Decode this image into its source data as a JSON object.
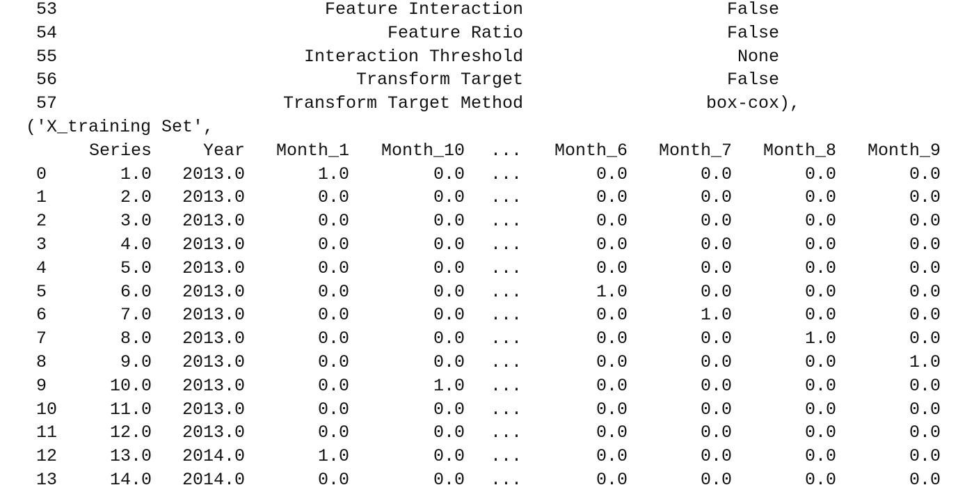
{
  "params_table": {
    "rows": [
      {
        "index": "53",
        "name": "Feature Interaction",
        "value": "False"
      },
      {
        "index": "54",
        "name": "Feature Ratio",
        "value": "False"
      },
      {
        "index": "55",
        "name": "Interaction Threshold",
        "value": "None"
      },
      {
        "index": "56",
        "name": "Transform Target",
        "value": "False"
      },
      {
        "index": "57",
        "name": "Transform Target Method",
        "value": "box-cox),"
      }
    ]
  },
  "tuple_label": "('X_training Set',",
  "data_table": {
    "columns": [
      "Series",
      "Year",
      "Month_1",
      "Month_10",
      "...",
      "Month_6",
      "Month_7",
      "Month_8",
      "Month_9"
    ],
    "rows": [
      {
        "index": "0",
        "cells": [
          "1.0",
          "2013.0",
          "1.0",
          "0.0",
          "...",
          "0.0",
          "0.0",
          "0.0",
          "0.0"
        ]
      },
      {
        "index": "1",
        "cells": [
          "2.0",
          "2013.0",
          "0.0",
          "0.0",
          "...",
          "0.0",
          "0.0",
          "0.0",
          "0.0"
        ]
      },
      {
        "index": "2",
        "cells": [
          "3.0",
          "2013.0",
          "0.0",
          "0.0",
          "...",
          "0.0",
          "0.0",
          "0.0",
          "0.0"
        ]
      },
      {
        "index": "3",
        "cells": [
          "4.0",
          "2013.0",
          "0.0",
          "0.0",
          "...",
          "0.0",
          "0.0",
          "0.0",
          "0.0"
        ]
      },
      {
        "index": "4",
        "cells": [
          "5.0",
          "2013.0",
          "0.0",
          "0.0",
          "...",
          "0.0",
          "0.0",
          "0.0",
          "0.0"
        ]
      },
      {
        "index": "5",
        "cells": [
          "6.0",
          "2013.0",
          "0.0",
          "0.0",
          "...",
          "1.0",
          "0.0",
          "0.0",
          "0.0"
        ]
      },
      {
        "index": "6",
        "cells": [
          "7.0",
          "2013.0",
          "0.0",
          "0.0",
          "...",
          "0.0",
          "1.0",
          "0.0",
          "0.0"
        ]
      },
      {
        "index": "7",
        "cells": [
          "8.0",
          "2013.0",
          "0.0",
          "0.0",
          "...",
          "0.0",
          "0.0",
          "1.0",
          "0.0"
        ]
      },
      {
        "index": "8",
        "cells": [
          "9.0",
          "2013.0",
          "0.0",
          "0.0",
          "...",
          "0.0",
          "0.0",
          "0.0",
          "1.0"
        ]
      },
      {
        "index": "9",
        "cells": [
          "10.0",
          "2013.0",
          "0.0",
          "1.0",
          "...",
          "0.0",
          "0.0",
          "0.0",
          "0.0"
        ]
      },
      {
        "index": "10",
        "cells": [
          "11.0",
          "2013.0",
          "0.0",
          "0.0",
          "...",
          "0.0",
          "0.0",
          "0.0",
          "0.0"
        ]
      },
      {
        "index": "11",
        "cells": [
          "12.0",
          "2013.0",
          "0.0",
          "0.0",
          "...",
          "0.0",
          "0.0",
          "0.0",
          "0.0"
        ]
      },
      {
        "index": "12",
        "cells": [
          "13.0",
          "2014.0",
          "1.0",
          "0.0",
          "...",
          "0.0",
          "0.0",
          "0.0",
          "0.0"
        ]
      },
      {
        "index": "13",
        "cells": [
          "14.0",
          "2014.0",
          "0.0",
          "0.0",
          "...",
          "0.0",
          "0.0",
          "0.0",
          "0.0"
        ]
      }
    ]
  }
}
